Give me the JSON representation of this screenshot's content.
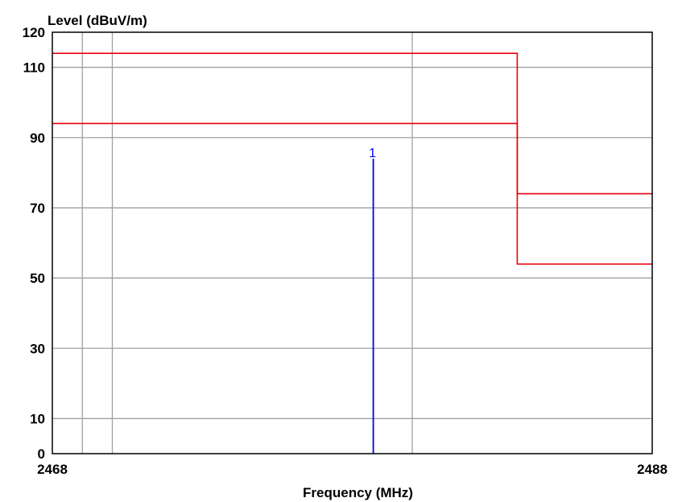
{
  "chart_data": {
    "type": "line",
    "ylabel": "Level (dBuV/m)",
    "xlabel": "Frequency (MHz)",
    "xlim": [
      2468,
      2488
    ],
    "ylim": [
      0,
      120
    ],
    "x_ticks": [
      {
        "value": 2468,
        "label": "2468"
      },
      {
        "value": 2488,
        "label": "2488"
      }
    ],
    "y_ticks": [
      {
        "value": 0,
        "label": "0"
      },
      {
        "value": 10,
        "label": "10"
      },
      {
        "value": 30,
        "label": "30"
      },
      {
        "value": 50,
        "label": "50"
      },
      {
        "value": 70,
        "label": "70"
      },
      {
        "value": 90,
        "label": "90"
      },
      {
        "value": 110,
        "label": "110"
      },
      {
        "value": 120,
        "label": "120"
      }
    ],
    "grid": true,
    "vertical_gridlines_x": [
      2469,
      2470,
      2480
    ],
    "limit_lines": [
      {
        "color": "#e8000a",
        "x": [
          2468,
          2483.5,
          2483.5,
          2488
        ],
        "y": [
          114,
          114,
          74,
          74
        ]
      },
      {
        "color": "#e8000a",
        "x": [
          2468,
          2483.5,
          2483.5,
          2488
        ],
        "y": [
          94,
          94,
          54,
          54
        ]
      }
    ],
    "markers": [
      {
        "label": "1",
        "x": 2478.7,
        "y": 84,
        "color": "#0000ff"
      }
    ]
  }
}
